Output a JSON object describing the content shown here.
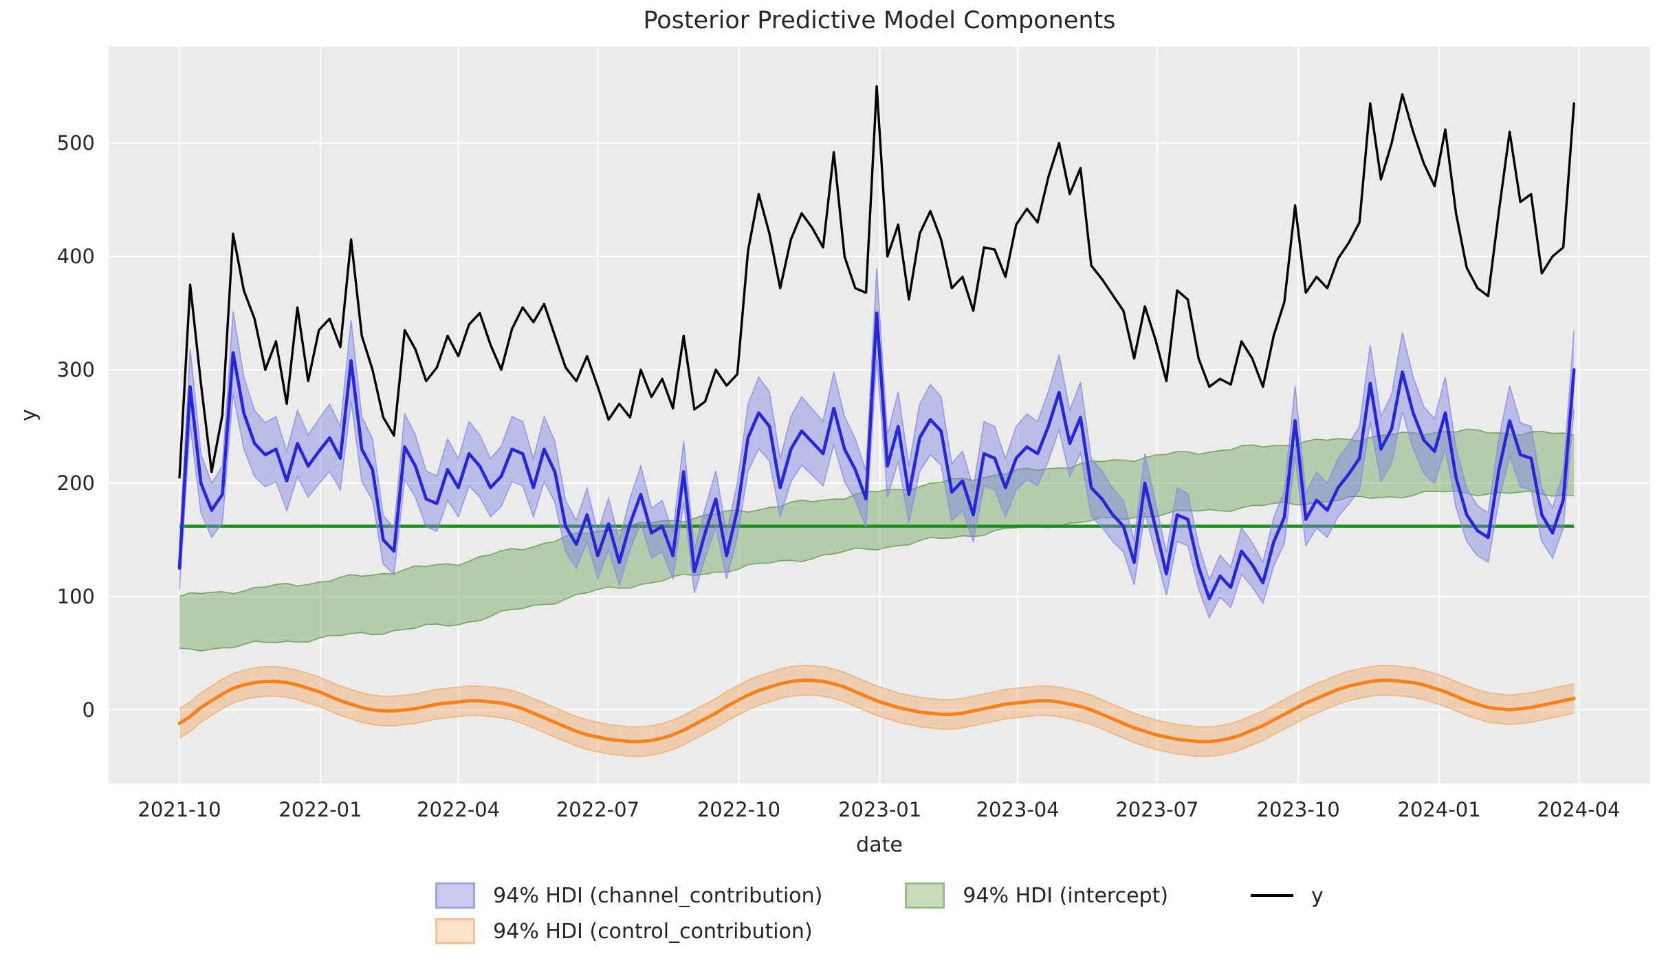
{
  "figure": {
    "title": "Posterior Predictive Model Components",
    "xlabel": "date",
    "ylabel": "y",
    "background": "#ffffff",
    "axes_background": "#ebebeb",
    "grid_color": "#ffffff",
    "text_color": "#262626"
  },
  "legend": {
    "items": [
      {
        "label": "94% HDI (channel_contribution)",
        "swatch": "patch",
        "fill": "#c9c9f1",
        "edge": "#a2a2e6"
      },
      {
        "label": "94% HDI (control_contribution)",
        "swatch": "patch",
        "fill": "#fbe2c8",
        "edge": "#f6c197"
      },
      {
        "label": "94% HDI (intercept)",
        "swatch": "patch",
        "fill": "#c6dcba",
        "edge": "#97bf85"
      },
      {
        "label": "y",
        "swatch": "line",
        "color": "#000000"
      }
    ]
  },
  "chart_data": {
    "type": "line",
    "title": "Posterior Predictive Model Components",
    "xlabel": "date",
    "ylabel": "y",
    "x_unit": "weeks since 2021-10-01, weekly observations",
    "n_weeks": 131,
    "xlim_weeks": [
      -6.6,
      137.1
    ],
    "ylim": [
      -65,
      585
    ],
    "grid": true,
    "legend_position": "below",
    "x_tick_labels": [
      "2021-10",
      "2022-01",
      "2022-04",
      "2022-07",
      "2022-10",
      "2023-01",
      "2023-04",
      "2023-07",
      "2023-10",
      "2024-01",
      "2024-04"
    ],
    "x_tick_weeks": [
      0,
      13.14,
      26.0,
      39.0,
      52.14,
      65.29,
      78.14,
      91.14,
      104.29,
      117.43,
      130.43
    ],
    "y_tick_values": [
      0,
      100,
      200,
      300,
      400,
      500
    ],
    "series_styles": {
      "y_line": {
        "color": "#000000",
        "width": 3.4
      },
      "channel_line": {
        "color": "#2727d8",
        "width": 4.6
      },
      "channel_band": {
        "fill": "#7d7de8",
        "fill_opacity": 0.42,
        "edge": "#8a8ae2",
        "edge_width": 1.6
      },
      "intercept_band": {
        "fill": "#7fae6d",
        "fill_opacity": 0.5,
        "edge": "#74a361",
        "edge_width": 1.6
      },
      "intercept_line": {
        "color": "#1f8f1f",
        "width": 4.6
      },
      "control_line": {
        "color": "#f5821e",
        "width": 5
      },
      "control_band": {
        "fill": "#f2a860",
        "fill_opacity": 0.42,
        "edge": "#f0a863",
        "edge_width": 1.6
      }
    },
    "y_values": [
      205,
      375,
      288,
      210,
      260,
      420,
      370,
      345,
      300,
      325,
      270,
      355,
      290,
      335,
      345,
      320,
      415,
      330,
      300,
      258,
      242,
      335,
      318,
      290,
      302,
      330,
      312,
      340,
      350,
      322,
      300,
      336,
      355,
      342,
      358,
      330,
      302,
      290,
      312,
      285,
      256,
      270,
      258,
      300,
      276,
      292,
      266,
      330,
      265,
      272,
      300,
      286,
      296,
      405,
      455,
      420,
      372,
      415,
      438,
      425,
      408,
      492,
      400,
      372,
      368,
      550,
      400,
      428,
      362,
      420,
      440,
      415,
      372,
      382,
      352,
      408,
      406,
      382,
      428,
      442,
      430,
      470,
      500,
      455,
      478,
      392,
      380,
      366,
      352,
      310,
      356,
      326,
      290,
      370,
      362,
      310,
      285,
      292,
      287,
      325,
      310,
      285,
      330,
      360,
      445,
      368,
      382,
      372,
      398,
      412,
      430,
      535,
      468,
      500,
      543,
      510,
      482,
      462,
      512,
      438,
      390,
      372,
      365,
      440,
      510,
      448,
      455,
      385,
      400,
      408,
      535
    ],
    "channel_contribution_mean": [
      125,
      285,
      200,
      176,
      190,
      315,
      262,
      235,
      225,
      230,
      202,
      235,
      215,
      228,
      240,
      222,
      308,
      230,
      212,
      150,
      140,
      232,
      215,
      186,
      182,
      212,
      196,
      226,
      215,
      196,
      206,
      230,
      226,
      196,
      230,
      210,
      162,
      146,
      172,
      136,
      164,
      130,
      164,
      190,
      156,
      162,
      136,
      210,
      122,
      156,
      186,
      136,
      176,
      240,
      262,
      250,
      196,
      230,
      246,
      236,
      226,
      266,
      230,
      212,
      186,
      350,
      215,
      250,
      190,
      240,
      256,
      246,
      192,
      202,
      172,
      226,
      222,
      196,
      222,
      232,
      226,
      250,
      280,
      235,
      258,
      196,
      186,
      172,
      162,
      130,
      200,
      160,
      120,
      172,
      168,
      126,
      98,
      118,
      108,
      140,
      128,
      112,
      148,
      170,
      255,
      168,
      185,
      176,
      196,
      208,
      222,
      288,
      230,
      248,
      298,
      262,
      238,
      228,
      262,
      205,
      172,
      158,
      152,
      212,
      255,
      225,
      222,
      172,
      156,
      185,
      300
    ],
    "channel_hdi_halfwidth_rule": {
      "base": 8,
      "factor": 0.09
    },
    "intercept": {
      "knot_weeks": [
        0,
        13,
        26,
        39,
        52,
        65,
        78,
        92,
        105,
        118,
        130
      ],
      "hdi_lower": [
        52,
        63,
        76,
        105,
        125,
        143,
        160,
        173,
        183,
        192,
        190
      ],
      "hdi_upper": [
        100,
        113,
        130,
        158,
        175,
        192,
        210,
        225,
        236,
        246,
        243
      ],
      "mean_line_value": 162
    },
    "control_contribution_mean": [
      -12,
      -6,
      2,
      8,
      14,
      19,
      22,
      24,
      25,
      25,
      24,
      22,
      19,
      16,
      12,
      8,
      5,
      2,
      0,
      -1,
      -1,
      0,
      1,
      3,
      5,
      6,
      7,
      8,
      8,
      7,
      6,
      4,
      1,
      -3,
      -7,
      -11,
      -15,
      -19,
      -22,
      -24,
      -26,
      -27,
      -28,
      -28,
      -27,
      -25,
      -22,
      -18,
      -13,
      -8,
      -3,
      3,
      8,
      13,
      17,
      20,
      23,
      25,
      26,
      26,
      25,
      23,
      20,
      16,
      12,
      8,
      5,
      2,
      0,
      -2,
      -3,
      -4,
      -4,
      -3,
      -1,
      1,
      3,
      5,
      6,
      7,
      8,
      8,
      7,
      5,
      3,
      0,
      -4,
      -8,
      -12,
      -16,
      -19,
      -22,
      -24,
      -26,
      -27,
      -28,
      -28,
      -27,
      -25,
      -22,
      -18,
      -14,
      -9,
      -4,
      1,
      6,
      10,
      14,
      18,
      21,
      23,
      25,
      26,
      26,
      25,
      24,
      22,
      19,
      16,
      12,
      8,
      5,
      2,
      1,
      0,
      1,
      2,
      4,
      6,
      8,
      10
    ],
    "control_hdi_halfwidth": 13
  }
}
